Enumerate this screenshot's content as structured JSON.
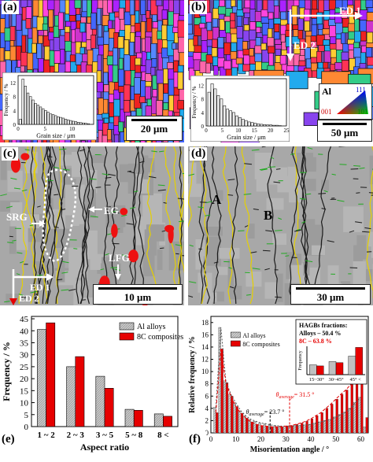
{
  "panels": {
    "a": {
      "label": "(a)",
      "scale_bar": "20 μm",
      "inset": {
        "ylabel": "Frequency / %",
        "xlabel": "Grain size / μm",
        "yticks": [
          "0",
          "4",
          "8",
          "12"
        ],
        "xticks": [
          "0",
          "5",
          "10",
          "15"
        ],
        "values": [
          1.5,
          13,
          11,
          9,
          8,
          7,
          6,
          5.5,
          5,
          4.5,
          4,
          3.5,
          3,
          2.8,
          2.5,
          2.2,
          2,
          1.8,
          1.5,
          1.3,
          1.1,
          0.9,
          0.8,
          0.6,
          0.5,
          0.4,
          0.3,
          0.2
        ]
      }
    },
    "b": {
      "label": "(b)",
      "scale_bar": "50 μm",
      "ed1": "ED 1",
      "ed2": "ED 2",
      "legend": {
        "al": "Al",
        "c111": "111",
        "c001": "001",
        "c101": "101"
      },
      "inset": {
        "ylabel": "Frequency / %",
        "xlabel": "Grain size / μm",
        "yticks": [
          "0",
          "4",
          "8",
          "12"
        ],
        "xticks": [
          "0",
          "5",
          "10",
          "15",
          "20",
          "25"
        ],
        "values": [
          10,
          12.5,
          11,
          9,
          8,
          6,
          5,
          4.5,
          4,
          3,
          2.5,
          2,
          1.6,
          1.2,
          1,
          0.8,
          0.6,
          0.5,
          0.4,
          0.3,
          0.3,
          0.2,
          0.2,
          0.1
        ]
      }
    },
    "c": {
      "label": "(c)",
      "scale_bar": "10 μm",
      "srg": "SRG",
      "eg": "EG",
      "lfg": "LFG",
      "ed1": "ED 1",
      "ed2": "ED 2"
    },
    "d": {
      "label": "(d)",
      "scale_bar": "30 μm",
      "a": "A",
      "b": "B"
    }
  },
  "chart_data": [
    {
      "type": "bar",
      "panel_label": "(e)",
      "categories": [
        "1 ~ 2",
        "2 ~ 3",
        "3 ~ 5",
        "5 ~ 8",
        "8 <"
      ],
      "xlabel": "Aspect ratio",
      "ylabel": "Frequency / %",
      "yticks": [
        "0",
        "5",
        "10",
        "15",
        "20",
        "25",
        "30",
        "35",
        "40",
        "45"
      ],
      "ylim": [
        0,
        46
      ],
      "legend_position": "top-right",
      "series": [
        {
          "name": "Al alloys",
          "values": [
            40.5,
            25.0,
            21.0,
            7.2,
            5.3
          ]
        },
        {
          "name": "8C composites",
          "values": [
            43.3,
            29.2,
            16.0,
            6.8,
            4.3
          ]
        }
      ]
    },
    {
      "type": "bar",
      "panel_label": "(f)",
      "xlabel": "Misorientation angle / °",
      "ylabel": "Relative frequency / %",
      "xticks": [
        "0",
        "10",
        "20",
        "30",
        "40",
        "50",
        "60"
      ],
      "yticks": [
        "0",
        "2",
        "4",
        "6",
        "8",
        "10",
        "12",
        "14",
        "16",
        "18"
      ],
      "xlim": [
        0,
        63
      ],
      "ylim": [
        0,
        19
      ],
      "legend": [
        "Al alloys",
        "8C composites"
      ],
      "annotation_avg_alloy": "θ",
      "annotation_avg_alloy_sub": "average",
      "annotation_avg_alloy_value": "= 23.7 °",
      "annotation_avg_comp": "θ",
      "annotation_avg_comp_sub": "average",
      "annotation_avg_comp_value": "= 31.5 °",
      "x": [
        2,
        4,
        6,
        8,
        10,
        12,
        14,
        16,
        18,
        20,
        22,
        24,
        26,
        28,
        30,
        32,
        34,
        36,
        38,
        40,
        42,
        44,
        46,
        48,
        50,
        52,
        54,
        56,
        58,
        60,
        62
      ],
      "series": [
        {
          "name": "Al alloys",
          "values": [
            4.2,
            17.2,
            8.5,
            6.3,
            4.9,
            3.6,
            2.8,
            2.2,
            1.9,
            1.6,
            1.5,
            1.3,
            1.2,
            1.1,
            1.1,
            1.1,
            1.2,
            1.2,
            1.3,
            1.4,
            1.6,
            1.8,
            2.0,
            2.2,
            2.6,
            3.0,
            3.4,
            4.0,
            5.0,
            5.8,
            1.0
          ]
        },
        {
          "name": "8C composites",
          "values": [
            3.3,
            13.7,
            8.2,
            6.0,
            4.3,
            3.2,
            2.4,
            1.8,
            1.4,
            1.2,
            1.1,
            1.0,
            1.0,
            1.0,
            1.1,
            1.2,
            1.4,
            1.6,
            1.9,
            2.3,
            2.8,
            3.3,
            4.0,
            4.7,
            5.5,
            6.3,
            7.0,
            7.9,
            8.7,
            9.0,
            2.5
          ]
        }
      ],
      "inset": {
        "title": "HAGBs fractions:",
        "line1": "Alloys – 50.4 %",
        "line2": "8C – 63.8 %",
        "ylabel": "Frequency",
        "categories": [
          "15~30°",
          "30~45°",
          "45° <"
        ],
        "series": [
          {
            "name": "Al alloys",
            "values": [
              9,
              12,
              17
            ]
          },
          {
            "name": "8C composites",
            "values": [
              8,
              11,
              25
            ]
          }
        ]
      }
    }
  ],
  "colors": {
    "alloy_fill": "#b8b8b8",
    "comp_fill": "#e60000",
    "hagb": "#e6d000",
    "lagb": "#22aa22"
  }
}
